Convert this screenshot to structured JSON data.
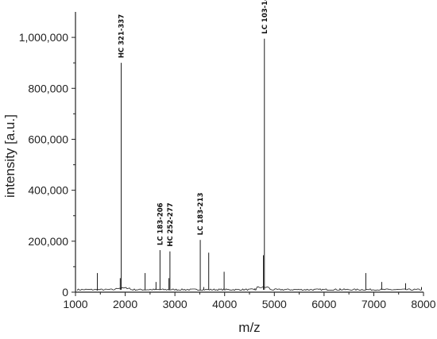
{
  "chart_data": {
    "type": "line",
    "title": "",
    "xlabel": "m/z",
    "ylabel": "intensity [a.u.]",
    "xlim": [
      1000,
      8000
    ],
    "ylim": [
      0,
      1100000
    ],
    "x_ticks": [
      1000,
      2000,
      3000,
      4000,
      5000,
      6000,
      7000,
      8000
    ],
    "y_ticks": [
      0,
      200000,
      400000,
      600000,
      800000,
      1000000
    ],
    "y_tick_labels": [
      "0",
      "200,000",
      "400,000",
      "600,000",
      "800,000",
      "1,000,000"
    ],
    "grid": false,
    "color": "#1a1a1a",
    "peaks": [
      {
        "x": 1440,
        "y": 75000
      },
      {
        "x": 1900,
        "y": 55000
      },
      {
        "x": 1920,
        "y": 900000
      },
      {
        "x": 2400,
        "y": 75000
      },
      {
        "x": 2620,
        "y": 40000
      },
      {
        "x": 2700,
        "y": 165000
      },
      {
        "x": 2880,
        "y": 55000
      },
      {
        "x": 2900,
        "y": 160000
      },
      {
        "x": 3510,
        "y": 205000
      },
      {
        "x": 3580,
        "y": 20000
      },
      {
        "x": 3680,
        "y": 155000
      },
      {
        "x": 3990,
        "y": 80000
      },
      {
        "x": 4610,
        "y": 15000
      },
      {
        "x": 4780,
        "y": 145000
      },
      {
        "x": 4800,
        "y": 995000
      },
      {
        "x": 5720,
        "y": 10000
      },
      {
        "x": 6320,
        "y": 15000
      },
      {
        "x": 6840,
        "y": 75000
      },
      {
        "x": 7160,
        "y": 40000
      },
      {
        "x": 7640,
        "y": 35000
      },
      {
        "x": 7960,
        "y": 20000
      }
    ],
    "annotations": [
      {
        "text": "HC 321-337",
        "x": 1920,
        "y": 900000
      },
      {
        "text": "LC 183-206",
        "x": 2700,
        "y": 165000
      },
      {
        "text": "HC 252-277",
        "x": 2900,
        "y": 160000
      },
      {
        "text": "LC 183-213",
        "x": 3510,
        "y": 205000
      },
      {
        "text": "LC 103-144",
        "x": 4800,
        "y": 995000
      }
    ]
  }
}
